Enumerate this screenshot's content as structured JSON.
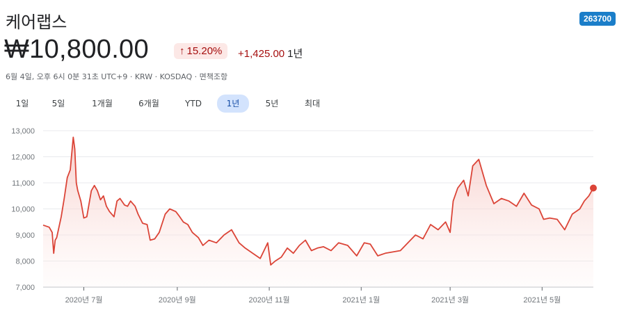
{
  "stock": {
    "name": "케어랩스",
    "ticker": "263700",
    "price": "₩10,800.00",
    "change_pct": "15.20%",
    "change_arrow": "↑",
    "change_abs": "+1,425.00",
    "change_period": "1년",
    "meta": "6월 4일, 오후 6시 0분 31초 UTC+9 · KRW · KOSDAQ · 면책조항"
  },
  "ranges": {
    "items": [
      "1일",
      "5일",
      "1개월",
      "6개월",
      "YTD",
      "1년",
      "5년",
      "최대"
    ],
    "selected": "1년"
  },
  "colors": {
    "line": "#db4437",
    "fill_top": "#f6c9c5",
    "pill_bg": "#fce8e6",
    "negative_text": "#a50e0e",
    "badge": "#1b7ec9",
    "active_tab_bg": "#d3e3fd"
  },
  "chart_data": {
    "type": "area",
    "ylim": [
      7000,
      13000
    ],
    "yticks": [
      "7,000",
      "8,000",
      "9,000",
      "10,000",
      "11,000",
      "12,000",
      "13,000"
    ],
    "ytick_values": [
      7000,
      8000,
      9000,
      10000,
      11000,
      12000,
      13000
    ],
    "xlabels": [
      "2020년 7월",
      "2020년 9월",
      "2020년 11월",
      "2021년 1월",
      "2021년 3월",
      "2021년 5월"
    ],
    "xlabel_dates": [
      "2020-07-01",
      "2020-09-01",
      "2020-11-01",
      "2021-01-01",
      "2021-03-01",
      "2021-05-01"
    ],
    "x_range": [
      "2020-06-04",
      "2021-06-04"
    ],
    "grid": true,
    "series": [
      {
        "x": [
          "2020-06-04",
          "2020-06-08",
          "2020-06-10",
          "2020-06-11",
          "2020-06-12",
          "2020-06-13",
          "2020-06-16",
          "2020-06-18",
          "2020-06-20",
          "2020-06-22",
          "2020-06-24",
          "2020-06-25",
          "2020-06-26",
          "2020-06-27",
          "2020-06-29",
          "2020-07-01",
          "2020-07-03",
          "2020-07-06",
          "2020-07-08",
          "2020-07-10",
          "2020-07-12",
          "2020-07-14",
          "2020-07-16",
          "2020-07-18",
          "2020-07-21",
          "2020-07-23",
          "2020-07-25",
          "2020-07-28",
          "2020-07-30",
          "2020-08-01",
          "2020-08-04",
          "2020-08-06",
          "2020-08-09",
          "2020-08-12",
          "2020-08-14",
          "2020-08-17",
          "2020-08-20",
          "2020-08-24",
          "2020-08-27",
          "2020-08-31",
          "2020-09-02",
          "2020-09-05",
          "2020-09-08",
          "2020-09-11",
          "2020-09-15",
          "2020-09-18",
          "2020-09-22",
          "2020-09-27",
          "2020-10-02",
          "2020-10-07",
          "2020-10-12",
          "2020-10-16",
          "2020-10-21",
          "2020-10-26",
          "2020-10-31",
          "2020-11-02",
          "2020-11-05",
          "2020-11-09",
          "2020-11-13",
          "2020-11-17",
          "2020-11-21",
          "2020-11-25",
          "2020-11-29",
          "2020-12-03",
          "2020-12-07",
          "2020-12-12",
          "2020-12-17",
          "2020-12-23",
          "2020-12-29",
          "2021-01-03",
          "2021-01-07",
          "2021-01-12",
          "2021-01-17",
          "2021-01-22",
          "2021-01-27",
          "2021-02-01",
          "2021-02-06",
          "2021-02-11",
          "2021-02-16",
          "2021-02-21",
          "2021-02-26",
          "2021-03-01",
          "2021-03-03",
          "2021-03-06",
          "2021-03-10",
          "2021-03-13",
          "2021-03-16",
          "2021-03-20",
          "2021-03-25",
          "2021-03-30",
          "2021-04-04",
          "2021-04-09",
          "2021-04-14",
          "2021-04-19",
          "2021-04-24",
          "2021-04-29",
          "2021-05-02",
          "2021-05-06",
          "2021-05-11",
          "2021-05-16",
          "2021-05-21",
          "2021-05-26",
          "2021-05-29",
          "2021-06-01",
          "2021-06-04"
        ],
        "y": [
          9380,
          9300,
          9100,
          8300,
          8800,
          8900,
          9700,
          10400,
          11200,
          11500,
          12750,
          12300,
          11000,
          10700,
          10300,
          9650,
          9700,
          10700,
          10900,
          10700,
          10350,
          10500,
          10100,
          9900,
          9700,
          10300,
          10400,
          10150,
          10100,
          10300,
          10100,
          9800,
          9450,
          9400,
          8800,
          8850,
          9100,
          9800,
          10000,
          9900,
          9750,
          9500,
          9400,
          9100,
          8900,
          8600,
          8800,
          8700,
          9000,
          9200,
          8700,
          8500,
          8300,
          8100,
          8700,
          7850,
          8000,
          8150,
          8500,
          8300,
          8600,
          8800,
          8400,
          8500,
          8550,
          8400,
          8700,
          8600,
          8200,
          8700,
          8650,
          8200,
          8300,
          8350,
          8400,
          8700,
          9000,
          8850,
          9400,
          9200,
          9500,
          9100,
          10300,
          10800,
          11100,
          10500,
          11650,
          11900,
          10900,
          10200,
          10400,
          10300,
          10100,
          10600,
          10150,
          10000,
          9600,
          9650,
          9600,
          9200,
          9800,
          10000,
          10300,
          10500,
          10800
        ]
      }
    ],
    "last_point": {
      "x": "2021-06-04",
      "y": 10800
    }
  }
}
